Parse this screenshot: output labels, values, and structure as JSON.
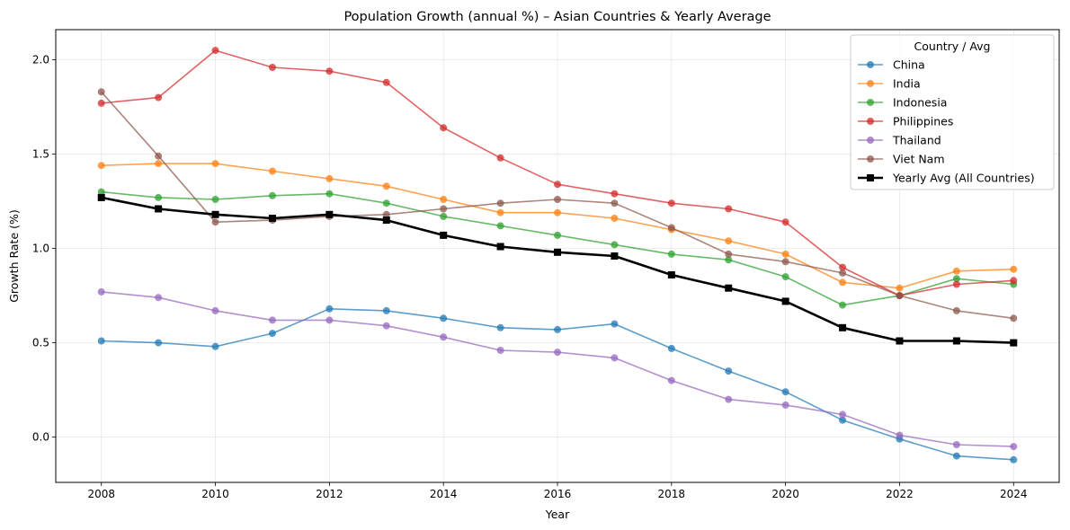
{
  "chart_data": {
    "type": "line",
    "title": "Population Growth (annual %) – Asian Countries & Yearly Average",
    "xlabel": "Year",
    "ylabel": "Growth Rate (%)",
    "x": [
      2008,
      2009,
      2010,
      2011,
      2012,
      2013,
      2014,
      2015,
      2016,
      2017,
      2018,
      2019,
      2020,
      2021,
      2022,
      2023,
      2024
    ],
    "xlim": [
      2007.2,
      2024.8
    ],
    "ylim": [
      -0.24,
      2.16
    ],
    "xticks": [
      2008,
      2010,
      2012,
      2014,
      2016,
      2018,
      2020,
      2022,
      2024
    ],
    "yticks": [
      0.0,
      0.5,
      1.0,
      1.5,
      2.0
    ],
    "ytick_labels": [
      "0.0",
      "0.5",
      "1.0",
      "1.5",
      "2.0"
    ],
    "grid": true,
    "legend": {
      "title": "Country / Avg",
      "placement": "top-right"
    },
    "series": [
      {
        "name": "China",
        "color": "#1f77b4",
        "marker": "circle",
        "values": [
          0.51,
          0.5,
          0.48,
          0.55,
          0.68,
          0.67,
          0.63,
          0.58,
          0.57,
          0.6,
          0.47,
          0.35,
          0.24,
          0.09,
          -0.01,
          -0.1,
          -0.12
        ]
      },
      {
        "name": "India",
        "color": "#ff7f0e",
        "marker": "circle",
        "values": [
          1.44,
          1.45,
          1.45,
          1.41,
          1.37,
          1.33,
          1.26,
          1.19,
          1.19,
          1.16,
          1.1,
          1.04,
          0.97,
          0.82,
          0.79,
          0.88,
          0.89
        ]
      },
      {
        "name": "Indonesia",
        "color": "#2ca02c",
        "marker": "circle",
        "values": [
          1.3,
          1.27,
          1.26,
          1.28,
          1.29,
          1.24,
          1.17,
          1.12,
          1.07,
          1.02,
          0.97,
          0.94,
          0.85,
          0.7,
          0.75,
          0.84,
          0.81
        ]
      },
      {
        "name": "Philippines",
        "color": "#d62728",
        "marker": "circle",
        "values": [
          1.77,
          1.8,
          2.05,
          1.96,
          1.94,
          1.88,
          1.64,
          1.48,
          1.34,
          1.29,
          1.24,
          1.21,
          1.14,
          0.9,
          0.75,
          0.81,
          0.83
        ]
      },
      {
        "name": "Thailand",
        "color": "#9467bd",
        "marker": "circle",
        "values": [
          0.77,
          0.74,
          0.67,
          0.62,
          0.62,
          0.59,
          0.53,
          0.46,
          0.45,
          0.42,
          0.3,
          0.2,
          0.17,
          0.12,
          0.01,
          -0.04,
          -0.05
        ]
      },
      {
        "name": "Viet Nam",
        "color": "#8c564b",
        "marker": "circle",
        "values": [
          1.83,
          1.49,
          1.14,
          1.15,
          1.17,
          1.18,
          1.21,
          1.24,
          1.26,
          1.24,
          1.11,
          0.97,
          0.93,
          0.87,
          0.75,
          0.67,
          0.63
        ]
      },
      {
        "name": "Yearly Avg (All Countries)",
        "color": "#000000",
        "marker": "square",
        "bold": true,
        "values": [
          1.27,
          1.21,
          1.18,
          1.16,
          1.18,
          1.15,
          1.07,
          1.01,
          0.98,
          0.96,
          0.86,
          0.79,
          0.72,
          0.58,
          0.51,
          0.51,
          0.5
        ]
      }
    ]
  }
}
